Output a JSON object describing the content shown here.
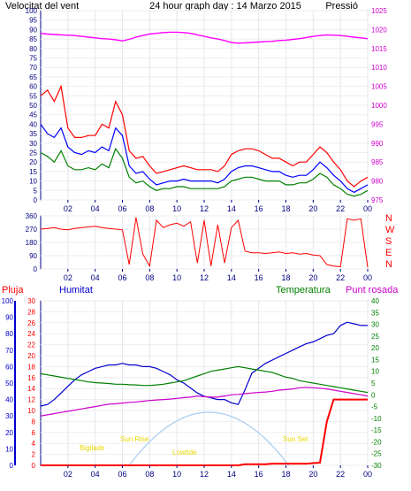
{
  "header": {
    "left": "Velocitat del vent",
    "center": "24 hour graph day : 14 Marzo 2015",
    "right": "Pressió"
  },
  "colors": {
    "axis": "#000080",
    "wind_avg": "#0000ff",
    "wind_gust": "#ff0000",
    "wind_run": "#008000",
    "pressure": "#ff00ff",
    "direction": "#ff0000",
    "rain": "#ff0000",
    "humidity": "#0000cc",
    "temperature": "#008000",
    "dewpoint": "#cc00cc",
    "sun": "#aaccee",
    "sun_labels": "#e8d800"
  },
  "x_ticks": [
    "02",
    "04",
    "06",
    "08",
    "10",
    "12",
    "14",
    "16",
    "18",
    "20",
    "22",
    "00"
  ],
  "dir_labels": [
    "N",
    "W",
    "S",
    "E",
    "N"
  ],
  "bottom_labels": {
    "rain": "Pluja",
    "humidity": "Humitat",
    "temperature": "Temperatura",
    "dewpoint": "Punt rosada"
  },
  "sun_labels": {
    "twilight_am": "Bigilade",
    "sunrise": "Sun Rise",
    "noon": "Lowtide",
    "sunset": "Sun Set"
  },
  "chart_data": [
    {
      "type": "line",
      "title": "24 hour graph day : 14 Marzo 2015",
      "xlabel": "",
      "x_hours": [
        0,
        0.5,
        1,
        1.5,
        2,
        2.5,
        3,
        3.5,
        4,
        4.5,
        5,
        5.5,
        6,
        6.5,
        7,
        7.5,
        8,
        8.5,
        9,
        9.5,
        10,
        10.5,
        11,
        11.5,
        12,
        12.5,
        13,
        13.5,
        14,
        14.5,
        15,
        15.5,
        16,
        16.5,
        17,
        17.5,
        18,
        18.5,
        19,
        19.5,
        20,
        20.5,
        21,
        21.5,
        22,
        22.5,
        23,
        23.5,
        24
      ],
      "ylim_left": [
        0,
        100
      ],
      "ylabel_left": "Velocitat del vent",
      "ylim_right": [
        975,
        1025
      ],
      "ylabel_right": "Pressió",
      "y_ticks_left": [
        0,
        5,
        10,
        15,
        20,
        25,
        30,
        35,
        40,
        45,
        50,
        55,
        60,
        65,
        70,
        75,
        80,
        85,
        90,
        95,
        100
      ],
      "y_ticks_right": [
        975,
        980,
        985,
        990,
        995,
        1000,
        1005,
        1010,
        1015,
        1020,
        1025
      ],
      "series": [
        {
          "key": "gust",
          "color": "#ff0000",
          "values": [
            55,
            58,
            52,
            60,
            38,
            33,
            33,
            34,
            34,
            40,
            38,
            52,
            45,
            26,
            22,
            23,
            18,
            14,
            15,
            16,
            17,
            18,
            17,
            16,
            16,
            16,
            15,
            18,
            24,
            26,
            27,
            27,
            26,
            24,
            22,
            22,
            20,
            18,
            20,
            20,
            24,
            28,
            25,
            20,
            16,
            10,
            7,
            10,
            12
          ]
        },
        {
          "key": "avg",
          "color": "#0000ff",
          "values": [
            40,
            35,
            33,
            38,
            28,
            25,
            24,
            26,
            25,
            28,
            26,
            38,
            34,
            18,
            14,
            15,
            11,
            8,
            9,
            10,
            10,
            11,
            10,
            10,
            10,
            10,
            9,
            11,
            15,
            17,
            18,
            18,
            17,
            16,
            15,
            15,
            13,
            12,
            13,
            13,
            16,
            20,
            17,
            13,
            10,
            6,
            4,
            6,
            8
          ]
        },
        {
          "key": "wind_run",
          "color": "#008000",
          "values": [
            25,
            23,
            20,
            26,
            18,
            16,
            16,
            17,
            16,
            19,
            17,
            27,
            22,
            12,
            9,
            10,
            7,
            5,
            6,
            6,
            7,
            7,
            6,
            6,
            6,
            6,
            6,
            7,
            10,
            11,
            12,
            12,
            11,
            10,
            10,
            10,
            8,
            8,
            9,
            9,
            11,
            14,
            12,
            8,
            6,
            3,
            2,
            3,
            5
          ]
        },
        {
          "key": "pressure",
          "axis": "right",
          "color": "#ff00ff",
          "values": [
            1019,
            1018.8,
            1018.7,
            1018.6,
            1018.5,
            1018.4,
            1018.2,
            1018,
            1017.8,
            1017.6,
            1017.5,
            1017.3,
            1017,
            1017.4,
            1018,
            1018.4,
            1018.8,
            1019,
            1019.2,
            1019.3,
            1019.3,
            1019.2,
            1019,
            1018.6,
            1018.2,
            1017.8,
            1017.5,
            1017.1,
            1016.6,
            1016.4,
            1016.5,
            1016.6,
            1016.7,
            1016.8,
            1016.9,
            1017.1,
            1017.2,
            1017.4,
            1017.6,
            1017.9,
            1018.2,
            1018.4,
            1018.6,
            1018.5,
            1018.4,
            1018.2,
            1018,
            1017.8,
            1017.6
          ]
        }
      ]
    },
    {
      "type": "line",
      "title": "",
      "ylim": [
        0,
        360
      ],
      "y_ticks": [
        0,
        90,
        180,
        270,
        360
      ],
      "x_hours": [
        0,
        0.5,
        1,
        1.5,
        2,
        2.5,
        3,
        3.5,
        4,
        4.5,
        5,
        5.5,
        6,
        6.5,
        7,
        7.5,
        8,
        8.5,
        9,
        9.5,
        10,
        10.5,
        11,
        11.5,
        12,
        12.5,
        13,
        13.5,
        14,
        14.5,
        15,
        15.5,
        16,
        16.5,
        17,
        17.5,
        18,
        18.5,
        19,
        19.5,
        20,
        20.5,
        21,
        21.5,
        22,
        22.5,
        23,
        23.5,
        24
      ],
      "series": [
        {
          "key": "direction",
          "color": "#ff0000",
          "values": [
            270,
            275,
            280,
            270,
            265,
            275,
            280,
            285,
            290,
            280,
            275,
            270,
            265,
            30,
            350,
            100,
            20,
            330,
            280,
            300,
            310,
            290,
            320,
            40,
            330,
            20,
            300,
            40,
            280,
            330,
            120,
            110,
            110,
            105,
            110,
            115,
            105,
            110,
            100,
            105,
            95,
            90,
            30,
            20,
            15,
            340,
            330,
            340,
            10
          ]
        }
      ]
    },
    {
      "type": "line",
      "title": "",
      "x_hours": [
        0,
        0.5,
        1,
        1.5,
        2,
        2.5,
        3,
        3.5,
        4,
        4.5,
        5,
        5.5,
        6,
        6.5,
        7,
        7.5,
        8,
        8.5,
        9,
        9.5,
        10,
        10.5,
        11,
        11.5,
        12,
        12.5,
        13,
        13.5,
        14,
        14.5,
        15,
        15.5,
        16,
        16.5,
        17,
        17.5,
        18,
        18.5,
        19,
        19.5,
        20,
        20.5,
        21,
        21.5,
        22,
        22.5,
        23,
        23.5,
        24
      ],
      "axes": {
        "humidity": {
          "label": "Humitat",
          "ylim": [
            0,
            100
          ],
          "ticks": [
            0,
            10,
            20,
            30,
            40,
            50,
            60,
            70,
            80,
            90,
            100
          ]
        },
        "rain": {
          "label": "Pluja",
          "ylim": [
            0,
            30
          ],
          "ticks": [
            0,
            2,
            4,
            6,
            8,
            10,
            12,
            14,
            16,
            18,
            20,
            22,
            24,
            26,
            28,
            30
          ]
        },
        "temperature": {
          "label": "Temperatura",
          "ylim": [
            -30,
            40
          ],
          "ticks": [
            -30,
            -25,
            -20,
            -15,
            -10,
            -5,
            0,
            5,
            10,
            15,
            20,
            25,
            30,
            35,
            40
          ]
        }
      },
      "series": [
        {
          "key": "humidity",
          "axis": "humidity",
          "color": "#0000cc",
          "values": [
            36,
            37,
            40,
            44,
            48,
            52,
            55,
            57,
            59,
            60,
            61,
            61,
            62,
            61,
            61,
            60,
            60,
            59,
            57,
            55,
            52,
            50,
            47,
            44,
            42,
            41,
            40,
            40,
            38,
            37,
            46,
            56,
            59,
            62,
            64,
            66,
            68,
            70,
            72,
            74,
            75,
            77,
            79,
            80,
            85,
            87,
            86,
            85,
            85
          ]
        },
        {
          "key": "rain",
          "axis": "rain",
          "color": "#ff0000",
          "values": [
            0,
            0,
            0,
            0,
            0,
            0,
            0,
            0,
            0,
            0,
            0,
            0,
            0,
            0,
            0,
            0,
            0,
            0,
            0,
            0,
            0,
            0,
            0,
            0,
            0,
            0,
            0,
            0,
            0,
            0,
            0.2,
            0.2,
            0.2,
            0.2,
            0.3,
            0.3,
            0.3,
            0.3,
            0.3,
            0.3,
            0.4,
            0.5,
            8,
            12,
            12,
            12,
            12,
            12,
            12
          ]
        },
        {
          "key": "temperature",
          "axis": "temperature",
          "color": "#008000",
          "values": [
            9,
            8.5,
            8,
            7.5,
            7,
            6.5,
            6,
            5.5,
            5.2,
            5,
            4.8,
            4.5,
            4.5,
            4.3,
            4.2,
            4,
            4,
            4.2,
            4.5,
            5,
            5.5,
            6,
            7,
            8,
            9,
            10,
            10.5,
            11,
            11.5,
            12,
            11.5,
            11,
            10.5,
            10,
            9.5,
            8.5,
            7.5,
            7,
            6,
            5.5,
            5,
            4.5,
            4,
            3.5,
            3,
            2.5,
            2,
            1.5,
            1
          ]
        },
        {
          "key": "dewpoint",
          "axis": "temperature",
          "color": "#cc00cc",
          "values": [
            -9,
            -8.5,
            -8,
            -7.5,
            -7,
            -6.5,
            -6,
            -5.5,
            -5,
            -4.5,
            -4,
            -3.8,
            -3.5,
            -3.2,
            -3,
            -2.7,
            -2.4,
            -2.2,
            -2,
            -1.8,
            -1.5,
            -1.2,
            -1,
            -0.5,
            -0.8,
            -1,
            -1,
            -0.5,
            0,
            0.2,
            0.5,
            0.8,
            1,
            1.2,
            1.5,
            2,
            2.2,
            2.5,
            3,
            3.2,
            3,
            2.8,
            2.5,
            2,
            1.5,
            1,
            0.5,
            0,
            -0.5
          ]
        }
      ],
      "daylight": {
        "sunrise_hour": 6.5,
        "sunset_hour": 18.2,
        "peak_hour": 12.35
      }
    }
  ]
}
